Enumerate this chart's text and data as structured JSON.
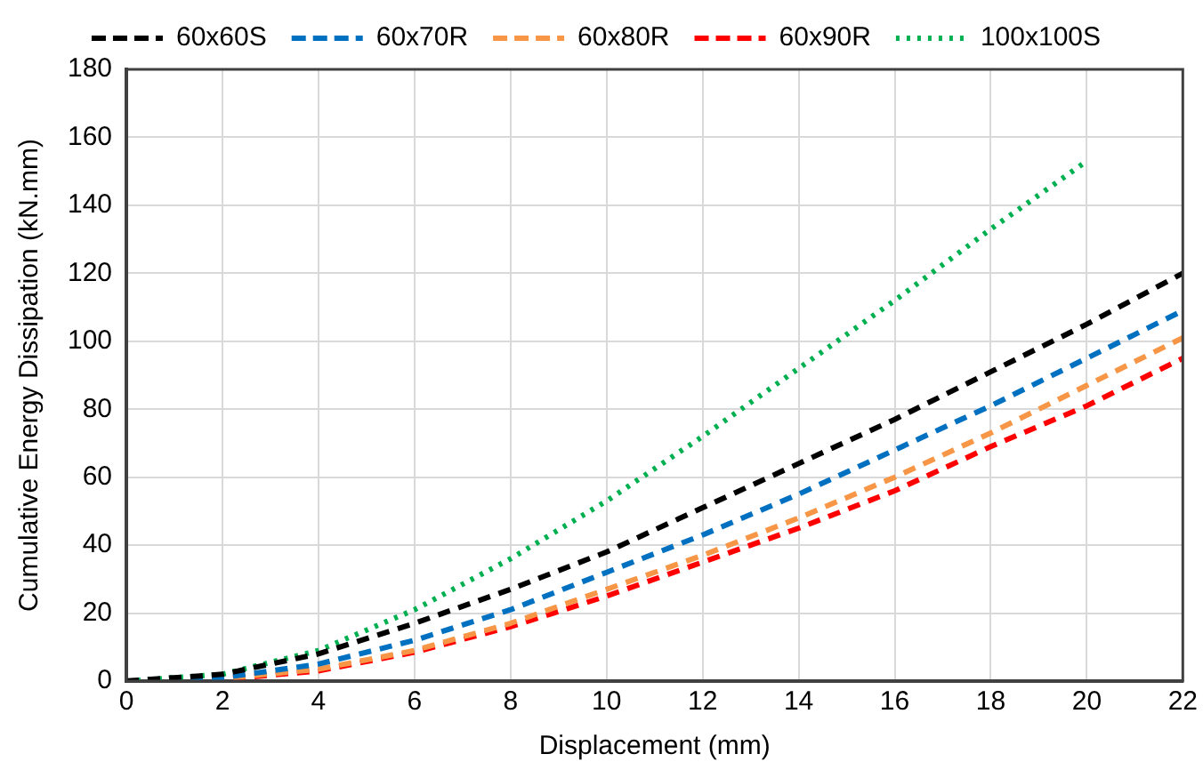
{
  "chart_data": {
    "type": "line",
    "xlabel": "Displacement (mm)",
    "ylabel": "Cumulative Energy Dissipation (kN.mm)",
    "x": [
      0,
      2,
      4,
      6,
      8,
      10,
      12,
      14,
      16,
      18,
      20,
      22
    ],
    "series": [
      {
        "name": "60x60S",
        "color": "#000000",
        "line_style": "dashed",
        "values": [
          0,
          2,
          8,
          17,
          27,
          38,
          51,
          64,
          77,
          91,
          105,
          120
        ]
      },
      {
        "name": "60x70R",
        "color": "#0070c0",
        "line_style": "dashed",
        "values": [
          0,
          1,
          5,
          12,
          21,
          32,
          43,
          55,
          68,
          81,
          95,
          109
        ]
      },
      {
        "name": "60x80R",
        "color": "#f79646",
        "line_style": "dashed",
        "values": [
          0,
          0.7,
          3.5,
          9,
          17,
          27,
          37,
          48,
          60,
          73,
          87,
          101
        ]
      },
      {
        "name": "60x90R",
        "color": "#ff0000",
        "line_style": "dashed",
        "values": [
          0,
          0.5,
          3,
          8.5,
          16,
          25,
          35,
          45,
          56,
          69,
          81,
          95
        ]
      },
      {
        "name": "100x100S",
        "color": "#00b050",
        "line_style": "dotted",
        "x": [
          0,
          2,
          4,
          6,
          8,
          10,
          12,
          14,
          16,
          18,
          20
        ],
        "values": [
          0,
          2,
          9,
          21,
          36,
          53,
          72,
          92,
          112,
          133,
          153
        ]
      }
    ],
    "xlim": [
      0,
      22
    ],
    "xticks": [
      0,
      2,
      4,
      6,
      8,
      10,
      12,
      14,
      16,
      18,
      20,
      22
    ],
    "ylim": [
      0,
      180
    ],
    "yticks": [
      0,
      20,
      40,
      60,
      80,
      100,
      120,
      140,
      160,
      180
    ],
    "grid": true,
    "legend": "top",
    "marker": "none"
  }
}
